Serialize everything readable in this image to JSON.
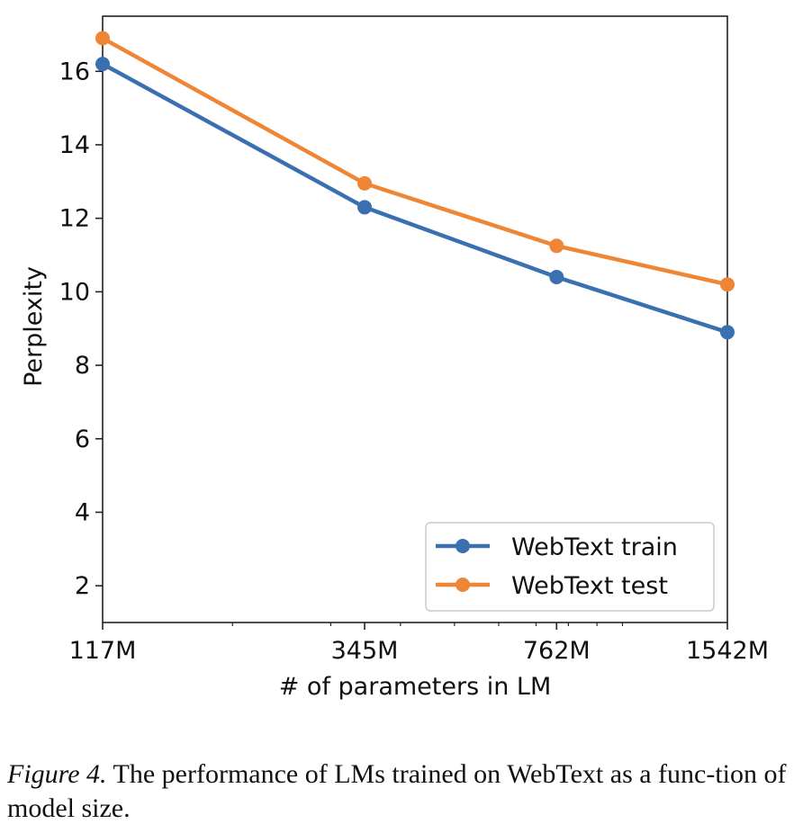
{
  "chart_data": {
    "type": "line",
    "x_scale": "log",
    "categories": [
      "117M",
      "345M",
      "762M",
      "1542M"
    ],
    "x": [
      117,
      345,
      762,
      1542
    ],
    "series": [
      {
        "name": "WebText train",
        "color": "#3a70b0",
        "values": [
          16.2,
          12.3,
          10.4,
          8.9
        ]
      },
      {
        "name": "WebText test",
        "color": "#ee8636",
        "values": [
          16.9,
          12.95,
          11.25,
          10.2
        ]
      }
    ],
    "xlabel": "# of parameters in LM",
    "ylabel": "Perplexity",
    "yticks": [
      "2",
      "4",
      "6",
      "8",
      "10",
      "12",
      "14",
      "16"
    ],
    "ytick_values": [
      2,
      4,
      6,
      8,
      10,
      12,
      14,
      16
    ],
    "ylim": [
      1,
      17.5
    ],
    "xlim": [
      117,
      1542
    ],
    "legend_position": "bottom-right",
    "grid": false
  },
  "caption": {
    "label": "Figure 4.",
    "text": "The performance of LMs trained on WebText as a func-tion of model size."
  }
}
